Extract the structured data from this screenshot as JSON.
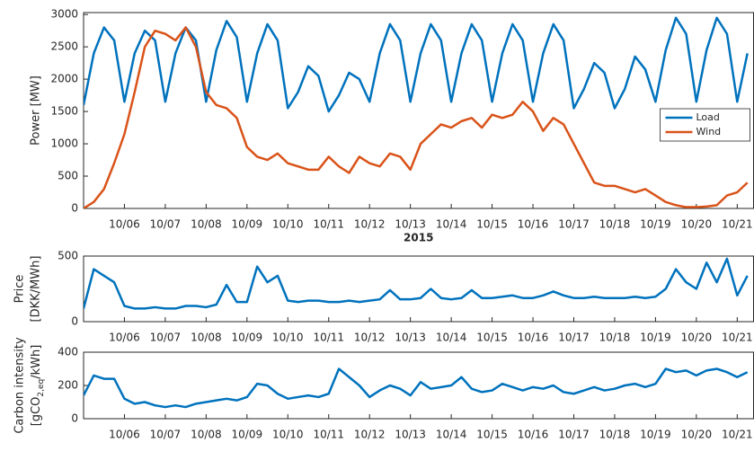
{
  "chart_data": [
    {
      "type": "line",
      "xlabel": "2015",
      "ylabel": [
        "Power [MW]"
      ],
      "legend": "right",
      "xlim": [
        5.0,
        21.4
      ],
      "ylim": [
        0,
        3030
      ],
      "xticks": [
        {
          "value": 6,
          "label": "10/06"
        },
        {
          "value": 7,
          "label": "10/07"
        },
        {
          "value": 8,
          "label": "10/08"
        },
        {
          "value": 9,
          "label": "10/09"
        },
        {
          "value": 10,
          "label": "10/10"
        },
        {
          "value": 11,
          "label": "10/11"
        },
        {
          "value": 12,
          "label": "10/12"
        },
        {
          "value": 13,
          "label": "10/13"
        },
        {
          "value": 14,
          "label": "10/14"
        },
        {
          "value": 15,
          "label": "10/15"
        },
        {
          "value": 16,
          "label": "10/16"
        },
        {
          "value": 17,
          "label": "10/17"
        },
        {
          "value": 18,
          "label": "10/18"
        },
        {
          "value": 19,
          "label": "10/19"
        },
        {
          "value": 20,
          "label": "10/20"
        },
        {
          "value": 21,
          "label": "10/21"
        }
      ],
      "yticks": [
        0,
        500,
        1000,
        1500,
        2000,
        2500,
        3000
      ],
      "x": [
        5,
        5.25,
        5.5,
        5.75,
        6,
        6.25,
        6.5,
        6.75,
        7,
        7.25,
        7.5,
        7.75,
        8,
        8.25,
        8.5,
        8.75,
        9,
        9.25,
        9.5,
        9.75,
        10,
        10.25,
        10.5,
        10.75,
        11,
        11.25,
        11.5,
        11.75,
        12,
        12.25,
        12.5,
        12.75,
        13,
        13.25,
        13.5,
        13.75,
        14,
        14.25,
        14.5,
        14.75,
        15,
        15.25,
        15.5,
        15.75,
        16,
        16.25,
        16.5,
        16.75,
        17,
        17.25,
        17.5,
        17.75,
        18,
        18.25,
        18.5,
        18.75,
        19,
        19.25,
        19.5,
        19.75,
        20,
        20.25,
        20.5,
        20.75,
        21,
        21.25
      ],
      "series": [
        {
          "name": "Load",
          "color": "#0072BD",
          "values": [
            1600,
            2400,
            2800,
            2600,
            1650,
            2400,
            2750,
            2600,
            1650,
            2400,
            2800,
            2600,
            1650,
            2450,
            2900,
            2650,
            1650,
            2400,
            2850,
            2600,
            1550,
            1800,
            2200,
            2050,
            1500,
            1750,
            2100,
            2000,
            1650,
            2400,
            2850,
            2600,
            1650,
            2400,
            2850,
            2600,
            1650,
            2400,
            2850,
            2600,
            1650,
            2400,
            2850,
            2600,
            1650,
            2400,
            2850,
            2600,
            1550,
            1850,
            2250,
            2100,
            1550,
            1850,
            2350,
            2150,
            1650,
            2450,
            2950,
            2700,
            1650,
            2450,
            2950,
            2700,
            1650,
            2400
          ]
        },
        {
          "name": "Wind",
          "color": "#D95319",
          "values": [
            0,
            100,
            300,
            700,
            1150,
            1800,
            2500,
            2750,
            2700,
            2600,
            2800,
            2500,
            1800,
            1600,
            1550,
            1400,
            950,
            800,
            750,
            850,
            700,
            650,
            600,
            600,
            800,
            650,
            550,
            800,
            700,
            650,
            850,
            800,
            600,
            1000,
            1150,
            1300,
            1250,
            1350,
            1400,
            1250,
            1450,
            1400,
            1450,
            1650,
            1500,
            1200,
            1400,
            1300,
            1000,
            700,
            400,
            350,
            350,
            300,
            250,
            300,
            200,
            100,
            50,
            20,
            20,
            30,
            50,
            200,
            250,
            400
          ]
        }
      ]
    },
    {
      "type": "line",
      "ylabel": [
        "Price",
        "[DKK/MWh]"
      ],
      "xlim": [
        5.0,
        21.4
      ],
      "ylim": [
        0,
        500
      ],
      "xticks": [
        {
          "value": 6,
          "label": "10/06"
        },
        {
          "value": 7,
          "label": "10/07"
        },
        {
          "value": 8,
          "label": "10/08"
        },
        {
          "value": 9,
          "label": "10/09"
        },
        {
          "value": 10,
          "label": "10/10"
        },
        {
          "value": 11,
          "label": "10/11"
        },
        {
          "value": 12,
          "label": "10/12"
        },
        {
          "value": 13,
          "label": "10/13"
        },
        {
          "value": 14,
          "label": "10/14"
        },
        {
          "value": 15,
          "label": "10/15"
        },
        {
          "value": 16,
          "label": "10/16"
        },
        {
          "value": 17,
          "label": "10/17"
        },
        {
          "value": 18,
          "label": "10/18"
        },
        {
          "value": 19,
          "label": "10/19"
        },
        {
          "value": 20,
          "label": "10/20"
        },
        {
          "value": 21,
          "label": "10/21"
        }
      ],
      "yticks": [
        0,
        500
      ],
      "x": [
        5,
        5.25,
        5.5,
        5.75,
        6,
        6.25,
        6.5,
        6.75,
        7,
        7.25,
        7.5,
        7.75,
        8,
        8.25,
        8.5,
        8.75,
        9,
        9.25,
        9.5,
        9.75,
        10,
        10.25,
        10.5,
        10.75,
        11,
        11.25,
        11.5,
        11.75,
        12,
        12.25,
        12.5,
        12.75,
        13,
        13.25,
        13.5,
        13.75,
        14,
        14.25,
        14.5,
        14.75,
        15,
        15.25,
        15.5,
        15.75,
        16,
        16.25,
        16.5,
        16.75,
        17,
        17.25,
        17.5,
        17.75,
        18,
        18.25,
        18.5,
        18.75,
        19,
        19.25,
        19.5,
        19.75,
        20,
        20.25,
        20.5,
        20.75,
        21,
        21.25
      ],
      "series": [
        {
          "color": "#0072BD",
          "values": [
            100,
            400,
            350,
            300,
            120,
            100,
            100,
            110,
            100,
            100,
            120,
            120,
            110,
            130,
            280,
            150,
            150,
            420,
            300,
            350,
            160,
            150,
            160,
            160,
            150,
            150,
            160,
            150,
            160,
            170,
            240,
            170,
            170,
            180,
            250,
            180,
            170,
            180,
            240,
            180,
            180,
            190,
            200,
            180,
            180,
            200,
            230,
            200,
            180,
            180,
            190,
            180,
            180,
            180,
            190,
            180,
            190,
            250,
            400,
            300,
            250,
            450,
            300,
            480,
            200,
            350
          ]
        }
      ]
    },
    {
      "type": "line",
      "ylabel": [
        "Carbon intensity",
        [
          "[gCO",
          "2,eq",
          "/kWh]"
        ]
      ],
      "xlim": [
        5.0,
        21.4
      ],
      "ylim": [
        0,
        400
      ],
      "xticks": [
        {
          "value": 6,
          "label": "10/06"
        },
        {
          "value": 7,
          "label": "10/07"
        },
        {
          "value": 8,
          "label": "10/08"
        },
        {
          "value": 9,
          "label": "10/09"
        },
        {
          "value": 10,
          "label": "10/10"
        },
        {
          "value": 11,
          "label": "10/11"
        },
        {
          "value": 12,
          "label": "10/12"
        },
        {
          "value": 13,
          "label": "10/13"
        },
        {
          "value": 14,
          "label": "10/14"
        },
        {
          "value": 15,
          "label": "10/15"
        },
        {
          "value": 16,
          "label": "10/16"
        },
        {
          "value": 17,
          "label": "10/17"
        },
        {
          "value": 18,
          "label": "10/18"
        },
        {
          "value": 19,
          "label": "10/19"
        },
        {
          "value": 20,
          "label": "10/20"
        },
        {
          "value": 21,
          "label": "10/21"
        }
      ],
      "yticks": [
        0,
        200,
        400
      ],
      "x": [
        5,
        5.25,
        5.5,
        5.75,
        6,
        6.25,
        6.5,
        6.75,
        7,
        7.25,
        7.5,
        7.75,
        8,
        8.25,
        8.5,
        8.75,
        9,
        9.25,
        9.5,
        9.75,
        10,
        10.25,
        10.5,
        10.75,
        11,
        11.25,
        11.5,
        11.75,
        12,
        12.25,
        12.5,
        12.75,
        13,
        13.25,
        13.5,
        13.75,
        14,
        14.25,
        14.5,
        14.75,
        15,
        15.25,
        15.5,
        15.75,
        16,
        16.25,
        16.5,
        16.75,
        17,
        17.25,
        17.5,
        17.75,
        18,
        18.25,
        18.5,
        18.75,
        19,
        19.25,
        19.5,
        19.75,
        20,
        20.25,
        20.5,
        20.75,
        21,
        21.25
      ],
      "series": [
        {
          "color": "#0072BD",
          "values": [
            140,
            260,
            240,
            240,
            120,
            90,
            100,
            80,
            70,
            80,
            70,
            90,
            100,
            110,
            120,
            110,
            130,
            210,
            200,
            150,
            120,
            130,
            140,
            130,
            150,
            300,
            250,
            200,
            130,
            170,
            200,
            180,
            140,
            220,
            180,
            190,
            200,
            250,
            180,
            160,
            170,
            210,
            190,
            170,
            190,
            180,
            200,
            160,
            150,
            170,
            190,
            170,
            180,
            200,
            210,
            190,
            210,
            300,
            280,
            290,
            260,
            290,
            300,
            280,
            250,
            280
          ]
        }
      ]
    }
  ]
}
